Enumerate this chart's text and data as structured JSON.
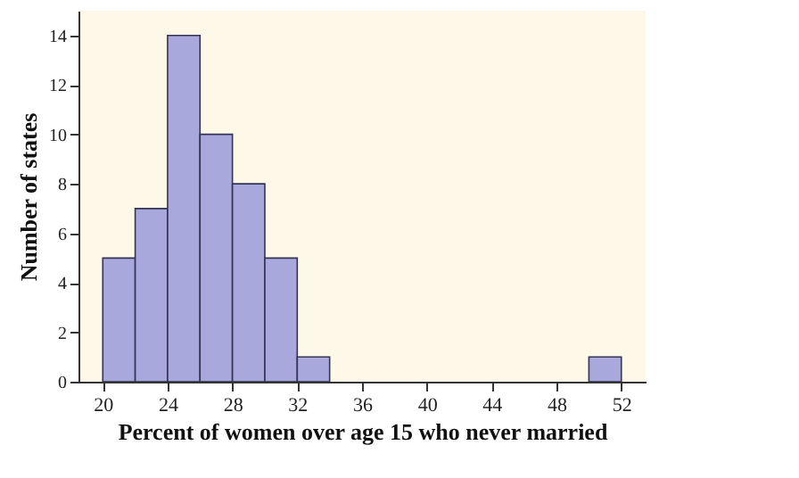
{
  "chart_data": {
    "type": "histogram",
    "xlabel": "Percent of women over age 15 who never married",
    "ylabel": "Number of states",
    "bins": [
      20,
      22,
      24,
      26,
      28,
      30,
      32,
      34,
      36,
      38,
      40,
      42,
      44,
      46,
      48,
      50,
      52
    ],
    "values": [
      5,
      7,
      14,
      10,
      8,
      5,
      1,
      0,
      0,
      0,
      0,
      0,
      0,
      0,
      0,
      1
    ],
    "color": "#a8a8dc",
    "xlim": [
      18.5,
      53.5
    ],
    "xticks": [
      20,
      24,
      28,
      32,
      36,
      40,
      44,
      48,
      52
    ],
    "ylim": [
      0,
      15
    ],
    "yticks": [
      0,
      2,
      4,
      6,
      8,
      10,
      12,
      14
    ]
  }
}
